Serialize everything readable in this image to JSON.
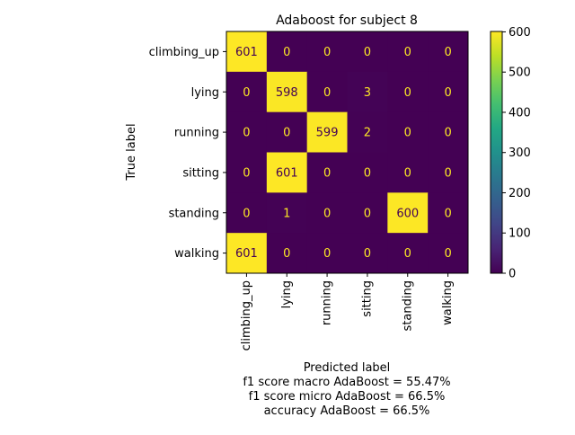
{
  "chart_data": {
    "type": "heatmap",
    "title": "Adaboost for subject 8",
    "xlabel": "Predicted label",
    "ylabel": "True label",
    "x_categories": [
      "climbing_up",
      "lying",
      "running",
      "sitting",
      "standing",
      "walking"
    ],
    "y_categories": [
      "climbing_up",
      "lying",
      "running",
      "sitting",
      "standing",
      "walking"
    ],
    "values": [
      [
        601,
        0,
        0,
        0,
        0,
        0
      ],
      [
        0,
        598,
        0,
        3,
        0,
        0
      ],
      [
        0,
        0,
        599,
        2,
        0,
        0
      ],
      [
        0,
        601,
        0,
        0,
        0,
        0
      ],
      [
        0,
        1,
        0,
        0,
        600,
        0
      ],
      [
        601,
        0,
        0,
        0,
        0,
        0
      ]
    ],
    "colorscale": "viridis",
    "color_range": [
      0,
      601
    ],
    "colorbar_ticks": [
      0,
      100,
      200,
      300,
      400,
      500,
      600
    ],
    "annotations": [
      "f1 score macro AdaBoost = 55.47%",
      "f1 score micro AdaBoost = 66.5%",
      "accuracy AdaBoost = 66.5%"
    ],
    "low_color": "#440154",
    "high_color": "#fde725",
    "grid": false
  }
}
